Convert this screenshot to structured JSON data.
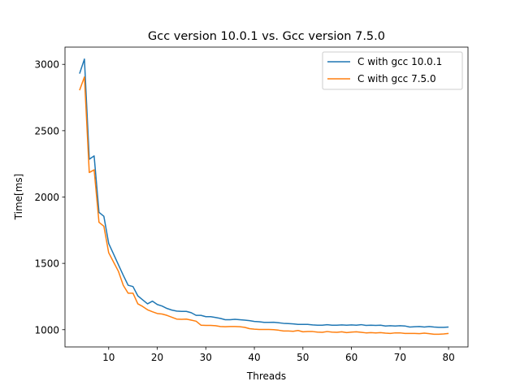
{
  "chart_data": {
    "type": "line",
    "title": "Gcc version 10.0.1 vs. Gcc version 7.5.0",
    "xlabel": "Threads",
    "ylabel": "Time[ms]",
    "xlim": [
      1,
      84
    ],
    "ylim": [
      870,
      3130
    ],
    "xticks": [
      10,
      20,
      30,
      40,
      50,
      60,
      70,
      80
    ],
    "yticks": [
      1000,
      1500,
      2000,
      2500,
      3000
    ],
    "grid": false,
    "legend_position": "top-right",
    "x": [
      4,
      5,
      6,
      7,
      8,
      9,
      10,
      11,
      12,
      13,
      14,
      15,
      16,
      17,
      18,
      19,
      20,
      21,
      22,
      23,
      24,
      25,
      26,
      27,
      28,
      29,
      30,
      31,
      32,
      33,
      34,
      35,
      36,
      37,
      38,
      39,
      40,
      41,
      42,
      43,
      44,
      45,
      46,
      47,
      48,
      49,
      50,
      51,
      52,
      53,
      54,
      55,
      56,
      57,
      58,
      59,
      60,
      61,
      62,
      63,
      64,
      65,
      66,
      67,
      68,
      69,
      70,
      71,
      72,
      73,
      74,
      75,
      76,
      77,
      78,
      79,
      80
    ],
    "series": [
      {
        "name": "C with gcc 10.0.1",
        "color": "#1f77b4",
        "values": [
          2930,
          3040,
          2285,
          2310,
          1885,
          1855,
          1650,
          1570,
          1490,
          1410,
          1335,
          1325,
          1255,
          1225,
          1195,
          1215,
          1190,
          1178,
          1160,
          1148,
          1140,
          1138,
          1138,
          1128,
          1108,
          1108,
          1098,
          1098,
          1092,
          1085,
          1075,
          1075,
          1078,
          1075,
          1072,
          1068,
          1062,
          1060,
          1055,
          1055,
          1056,
          1052,
          1048,
          1046,
          1044,
          1040,
          1040,
          1040,
          1036,
          1034,
          1034,
          1038,
          1034,
          1034,
          1036,
          1034,
          1036,
          1034,
          1038,
          1032,
          1034,
          1032,
          1034,
          1028,
          1030,
          1028,
          1030,
          1028,
          1020,
          1022,
          1024,
          1020,
          1024,
          1020,
          1018,
          1018,
          1020
        ]
      },
      {
        "name": "C with gcc 7.5.0",
        "color": "#ff7f0e",
        "values": [
          2805,
          2905,
          2185,
          2205,
          1810,
          1780,
          1580,
          1510,
          1440,
          1335,
          1275,
          1275,
          1195,
          1175,
          1150,
          1135,
          1122,
          1118,
          1108,
          1094,
          1080,
          1078,
          1080,
          1072,
          1064,
          1034,
          1032,
          1032,
          1030,
          1024,
          1022,
          1024,
          1024,
          1022,
          1018,
          1008,
          1004,
          1002,
          1002,
          1002,
          1000,
          996,
          990,
          990,
          988,
          994,
          984,
          986,
          986,
          982,
          980,
          986,
          982,
          980,
          984,
          978,
          982,
          984,
          980,
          976,
          978,
          976,
          978,
          974,
          972,
          976,
          976,
          972,
          972,
          972,
          970,
          974,
          970,
          966,
          966,
          968,
          972
        ]
      }
    ]
  }
}
